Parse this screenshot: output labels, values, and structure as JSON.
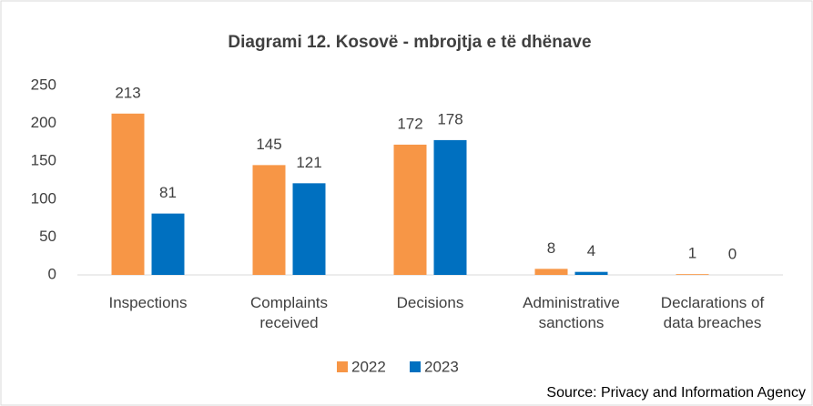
{
  "chart_data": {
    "type": "bar",
    "title": "Diagrami 12. Kosovë - mbrojtja e të dhënave",
    "categories": [
      "Inspections",
      "Complaints received",
      "Decisions",
      "Administrative sanctions",
      "Declarations of data breaches"
    ],
    "series": [
      {
        "name": "2022",
        "color": "#f79646",
        "values": [
          213,
          145,
          172,
          8,
          1
        ]
      },
      {
        "name": "2023",
        "color": "#0070c0",
        "values": [
          81,
          121,
          178,
          4,
          0
        ]
      }
    ],
    "ylim": [
      0,
      250
    ],
    "yticks": [
      0,
      50,
      100,
      150,
      200,
      250
    ],
    "legend": "bottom",
    "source": "Source: Privacy and Information Agency"
  }
}
